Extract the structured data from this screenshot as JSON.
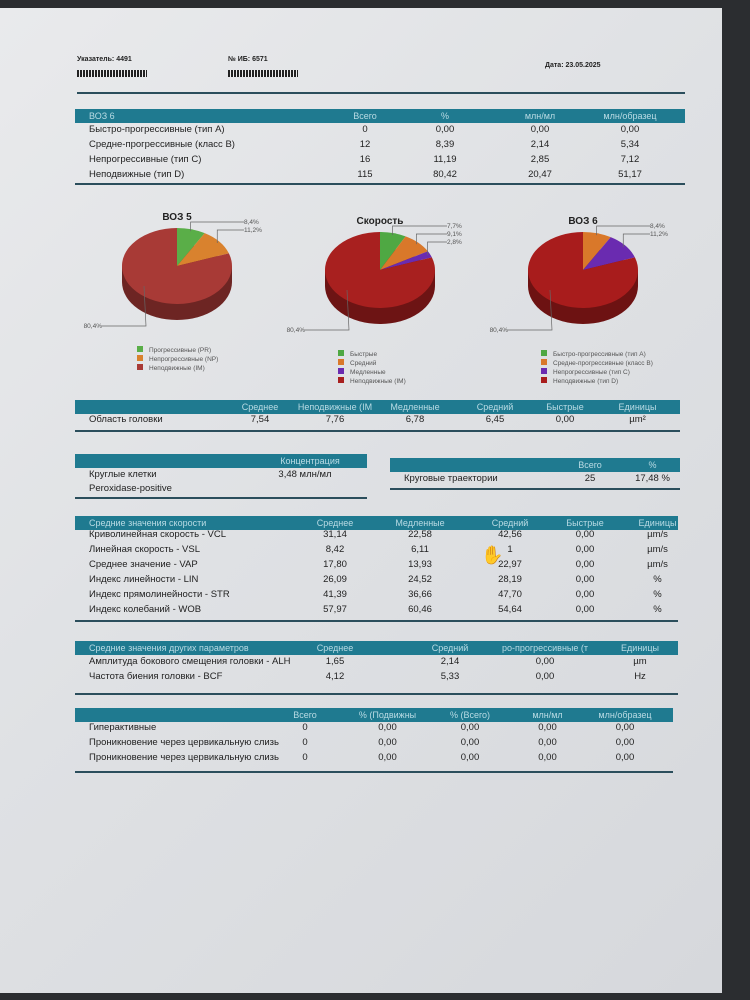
{
  "header": {
    "referrer": "Указатель: 4491",
    "case_no": "№ ИБ: 6571",
    "date": "Дата: 23.05.2025"
  },
  "who6_table": {
    "title": "ВОЗ 6",
    "columns": [
      "Всего",
      "%",
      "млн/мл",
      "млн/образец"
    ],
    "rows": [
      {
        "label": "Быстро-прогрессивные (тип A)",
        "values": [
          "0",
          "0,00",
          "0,00",
          "0,00"
        ]
      },
      {
        "label": "Средне-прогрессивные (класс B)",
        "values": [
          "12",
          "8,39",
          "2,14",
          "5,34"
        ]
      },
      {
        "label": "Непрогрессивные (тип C)",
        "values": [
          "16",
          "11,19",
          "2,85",
          "7,12"
        ]
      },
      {
        "label": "Неподвижные (тип D)",
        "values": [
          "115",
          "80,42",
          "20,47",
          "51,17"
        ]
      }
    ]
  },
  "chart_data": [
    {
      "type": "pie",
      "title": "ВОЗ 5",
      "slices": [
        {
          "label": "Прогрессивные (PR)",
          "value": 8.4,
          "text": "8,4%",
          "color": "#5aae48"
        },
        {
          "label": "Непрогрессивные (NP)",
          "value": 11.2,
          "text": "11,2%",
          "color": "#d9822e"
        },
        {
          "label": "Неподвижные (IM)",
          "value": 80.4,
          "text": "80,4%",
          "color": "#a83a36"
        }
      ]
    },
    {
      "type": "pie",
      "title": "Скорость",
      "slices": [
        {
          "label": "Быстрые",
          "value": 7.7,
          "text": "7,7%",
          "color": "#4fa843"
        },
        {
          "label": "Средний",
          "value": 9.1,
          "text": "9,1%",
          "color": "#d9782a"
        },
        {
          "label": "Медленные",
          "value": 2.8,
          "text": "2,8%",
          "color": "#6a2bb0"
        },
        {
          "label": "Неподвижные (IM)",
          "value": 80.4,
          "text": "80,4%",
          "color": "#a8201f"
        }
      ]
    },
    {
      "type": "pie",
      "title": "ВОЗ 6",
      "slices": [
        {
          "label": "Быстро-прогрессивные (тип A)",
          "value": 0,
          "text": "",
          "color": "#4fa843"
        },
        {
          "label": "Средне-прогрессивные (класс B)",
          "value": 8.4,
          "text": "8,4%",
          "color": "#d9782a"
        },
        {
          "label": "Непрогрессивные (тип C)",
          "value": 11.2,
          "text": "11,2%",
          "color": "#6a2bb0"
        },
        {
          "label": "Неподвижные (тип D)",
          "value": 80.4,
          "text": "80,4%",
          "color": "#a81c1c"
        }
      ]
    }
  ],
  "head_table": {
    "columns": [
      "Среднее",
      "Неподвижные (IM",
      "Медленные",
      "Средний",
      "Быстрые",
      "Единицы"
    ],
    "row": {
      "label": "Область головки",
      "values": [
        "7,54",
        "7,76",
        "6,78",
        "6,45",
        "0,00",
        "µm²"
      ]
    }
  },
  "conc_table": {
    "column": "Концентрация",
    "rows": [
      {
        "label": "Круглые клетки",
        "value": "3,48 млн/мл"
      },
      {
        "label": "Peroxidase-positive",
        "value": ""
      }
    ]
  },
  "circ_table": {
    "columns": [
      "Всего",
      "%"
    ],
    "row": {
      "label": "Круговые траектории",
      "values": [
        "25",
        "17,48 %"
      ]
    }
  },
  "speed_table": {
    "title": "Средние значения скорости",
    "columns": [
      "Среднее",
      "Медленные",
      "Средний",
      "Быстрые",
      "Единицы"
    ],
    "rows": [
      {
        "label": "Криволинейная скорость - VCL",
        "values": [
          "31,14",
          "22,58",
          "42,56",
          "0,00",
          "µm/s"
        ]
      },
      {
        "label": "Линейная скорость - VSL",
        "values": [
          "8,42",
          "6,11",
          "1",
          "0,00",
          "µm/s"
        ]
      },
      {
        "label": "Среднее значение - VAP",
        "values": [
          "17,80",
          "13,93",
          "22,97",
          "0,00",
          "µm/s"
        ]
      },
      {
        "label": "Индекс линейности - LIN",
        "values": [
          "26,09",
          "24,52",
          "28,19",
          "0,00",
          "%"
        ]
      },
      {
        "label": "Индекс прямолинейности - STR",
        "values": [
          "41,39",
          "36,66",
          "47,70",
          "0,00",
          "%"
        ]
      },
      {
        "label": "Индекс колебаний - WOB",
        "values": [
          "57,97",
          "60,46",
          "54,64",
          "0,00",
          "%"
        ]
      }
    ]
  },
  "other_table": {
    "title": "Средние значения других параметров",
    "columns": [
      "Среднее",
      "Средний",
      "ро-прогрессивные (т",
      "Единицы"
    ],
    "rows": [
      {
        "label": "Амплитуда бокового смещения головки - ALH",
        "values": [
          "1,65",
          "2,14",
          "0,00",
          "µm"
        ]
      },
      {
        "label": "Частота биения головки - BCF",
        "values": [
          "4,12",
          "5,33",
          "0,00",
          "Hz"
        ]
      }
    ]
  },
  "last_table": {
    "columns": [
      "Всего",
      "% (Подвижны",
      "% (Всего)",
      "млн/мл",
      "млн/образец"
    ],
    "rows": [
      {
        "label": "Гиперактивные",
        "values": [
          "0",
          "0,00",
          "0,00",
          "0,00",
          "0,00"
        ]
      },
      {
        "label": "Проникновение через цервикальную слизь",
        "values": [
          "0",
          "0,00",
          "0,00",
          "0,00",
          "0,00"
        ]
      },
      {
        "label": "Проникновение через цервикальную слизь",
        "values": [
          "0",
          "0,00",
          "0,00",
          "0,00",
          "0,00"
        ]
      }
    ]
  }
}
